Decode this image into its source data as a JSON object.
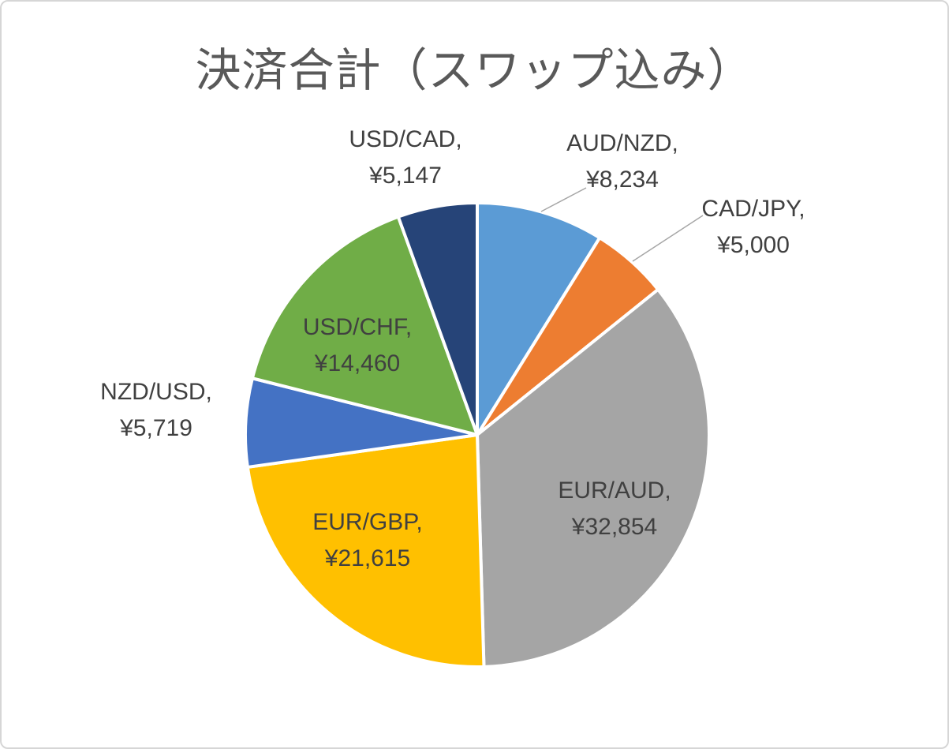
{
  "chart_data": {
    "type": "pie",
    "title": "決済合計（スワップ込み）",
    "direction": "clockwise",
    "start_angle_deg": 0,
    "legend": "none",
    "slices": [
      {
        "id": "aud-nzd",
        "label": "AUD/NZD",
        "value": 8234,
        "display": "AUD/NZD,\n¥8,234",
        "color": "#5B9BD5",
        "label_position": "outside"
      },
      {
        "id": "cad-jpy",
        "label": "CAD/JPY",
        "value": 5000,
        "display": "CAD/JPY,\n¥5,000",
        "color": "#ED7D31",
        "label_position": "outside"
      },
      {
        "id": "eur-aud",
        "label": "EUR/AUD",
        "value": 32854,
        "display": "EUR/AUD,\n¥32,854",
        "color": "#A5A5A5",
        "label_position": "inside"
      },
      {
        "id": "eur-gbp",
        "label": "EUR/GBP",
        "value": 21615,
        "display": "EUR/GBP,\n¥21,615",
        "color": "#FFC000",
        "label_position": "inside"
      },
      {
        "id": "nzd-usd",
        "label": "NZD/USD",
        "value": 5719,
        "display": "NZD/USD,\n¥5,719",
        "color": "#4472C4",
        "label_position": "outside"
      },
      {
        "id": "usd-chf",
        "label": "USD/CHF",
        "value": 14460,
        "display": "USD/CHF,\n¥14,460",
        "color": "#70AD47",
        "label_position": "inside"
      },
      {
        "id": "usd-cad",
        "label": "USD/CAD",
        "value": 5147,
        "display": "USD/CAD,\n¥5,147",
        "color": "#264478",
        "label_position": "outside"
      }
    ],
    "styles": {
      "title_color": "#595959",
      "label_color": "#404040",
      "slice_border_color": "#FFFFFF",
      "leader_line_color": "#A6A6A6",
      "frame_border_color": "#D6D6D6",
      "background": "#FFFFFF"
    }
  }
}
